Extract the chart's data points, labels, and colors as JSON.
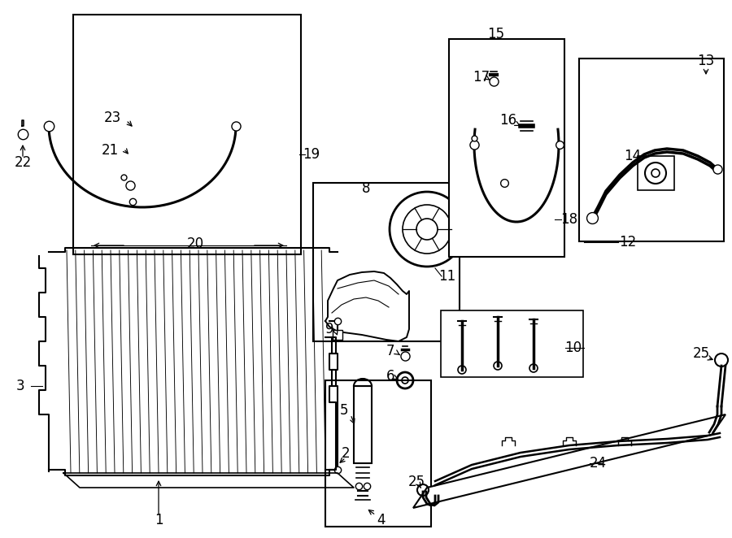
{
  "title": "",
  "bg_color": "#ffffff",
  "line_color": "#000000",
  "fig_width": 9.0,
  "fig_height": 6.62,
  "dpi": 100
}
